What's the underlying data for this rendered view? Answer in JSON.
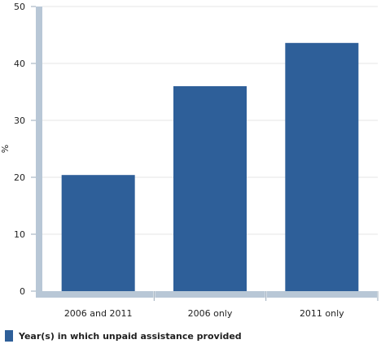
{
  "chart_data": {
    "type": "bar",
    "categories": [
      "2006 and 2011",
      "2006 only",
      "2011 only"
    ],
    "series": [
      {
        "name": "Year(s) in which unpaid assistance provided",
        "values": [
          20.4,
          36.0,
          43.6
        ]
      }
    ],
    "ylabel": "%",
    "xlabel": "",
    "ylim": [
      0,
      50
    ],
    "yticks": [
      0,
      10,
      20,
      30,
      40,
      50
    ],
    "grid": true,
    "legend_position": "bottom-left",
    "colors": {
      "bar": "#2e5f99",
      "axis": "#b8c7d6",
      "grid": "#e6e6e6"
    }
  }
}
